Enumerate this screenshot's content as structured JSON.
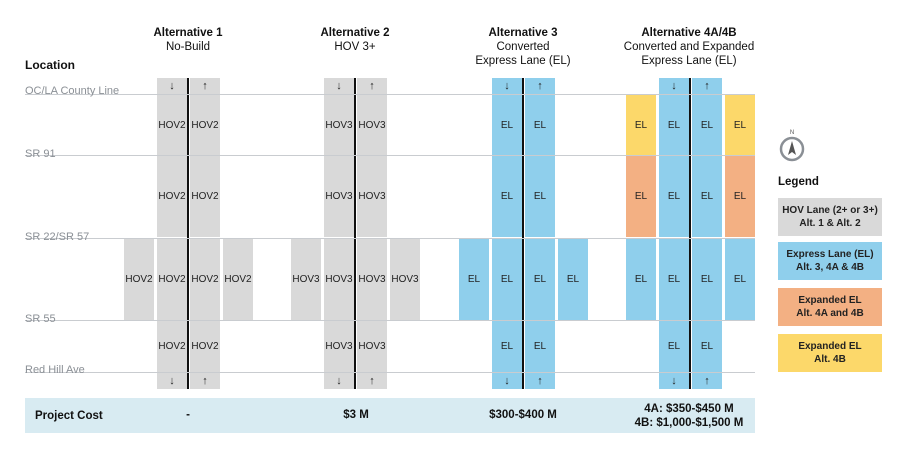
{
  "location_title": "Location",
  "locations": [
    "OC/LA County Line",
    "SR 91",
    "SR 22/SR 57",
    "SR 55",
    "Red Hill Ave"
  ],
  "alternatives": [
    {
      "title": "Alternative 1",
      "lines": [
        "No-Build"
      ]
    },
    {
      "title": "Alternative 2",
      "lines": [
        "HOV 3+"
      ]
    },
    {
      "title": "Alternative 3",
      "lines": [
        "Converted",
        "Express Lane (EL)"
      ]
    },
    {
      "title": "Alternative 4A/4B",
      "lines": [
        "Converted and Expanded",
        "Express Lane (EL)"
      ]
    }
  ],
  "lane_labels": {
    "hov2": "HOV2",
    "hov3": "HOV3",
    "el": "EL"
  },
  "arrows": {
    "down": "↓",
    "up": "↑"
  },
  "cost": {
    "label": "Project Cost",
    "alt1": "-",
    "alt2": "$3 M",
    "alt3": "$300-$400 M",
    "alt4_lines": [
      "4A: $350-$450 M",
      "4B: $1,000-$1,500 M"
    ]
  },
  "compass": {
    "letter": "N",
    "icon": "north-arrow-icon"
  },
  "legend": {
    "title": "Legend",
    "items": [
      {
        "lines": [
          "HOV Lane (2+ or 3+)",
          "Alt. 1 & Alt. 2"
        ],
        "color": "#d9d9d9"
      },
      {
        "lines": [
          "Express Lane (EL)",
          "Alt. 3, 4A & 4B"
        ],
        "color": "#8fcfec"
      },
      {
        "lines": [
          "Expanded EL",
          "Alt. 4A and 4B"
        ],
        "color": "#f3b083"
      },
      {
        "lines": [
          "Expanded EL",
          "Alt. 4B"
        ],
        "color": "#fcd86a"
      }
    ]
  }
}
